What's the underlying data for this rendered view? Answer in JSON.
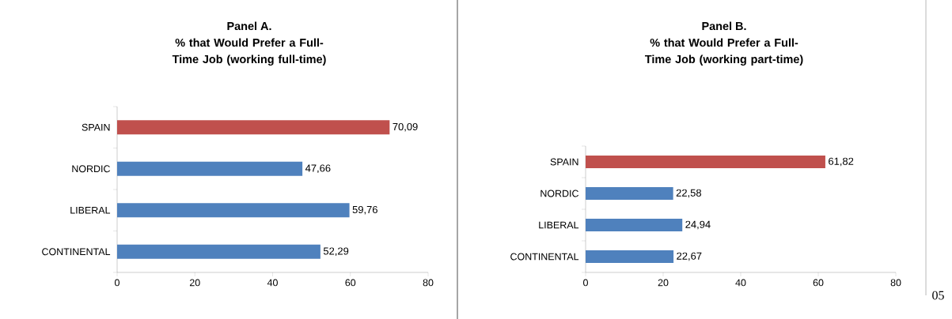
{
  "chart_data": [
    {
      "type": "bar",
      "orientation": "horizontal",
      "title": "Panel A.",
      "subtitle": "% that Would Prefer a Full-Time Job (working full-time)",
      "categories": [
        "SPAIN",
        "NORDIC",
        "LIBERAL",
        "CONTINENTAL"
      ],
      "values": [
        70.09,
        47.66,
        59.76,
        52.29
      ],
      "colors": [
        "#c0504d",
        "#4f81bd",
        "#4f81bd",
        "#4f81bd"
      ],
      "value_labels": [
        "70,09",
        "47,66",
        "59,76",
        "52,29"
      ],
      "xlim": [
        0,
        80
      ],
      "xticks": [
        0,
        20,
        40,
        60,
        80
      ],
      "grid": false
    },
    {
      "type": "bar",
      "orientation": "horizontal",
      "title": "Panel B.",
      "subtitle": "% that Would Prefer a Full-Time Job (working part-time)",
      "categories": [
        "SPAIN",
        "NORDIC",
        "LIBERAL",
        "CONTINENTAL"
      ],
      "values": [
        61.82,
        22.58,
        24.94,
        22.67
      ],
      "colors": [
        "#c0504d",
        "#4f81bd",
        "#4f81bd",
        "#4f81bd"
      ],
      "value_labels": [
        "61,82",
        "22,58",
        "24,94",
        "22,67"
      ],
      "xlim": [
        0,
        80
      ],
      "xticks": [
        0,
        20,
        40,
        60,
        80
      ],
      "grid": false,
      "annotations": [
        "05"
      ]
    }
  ]
}
